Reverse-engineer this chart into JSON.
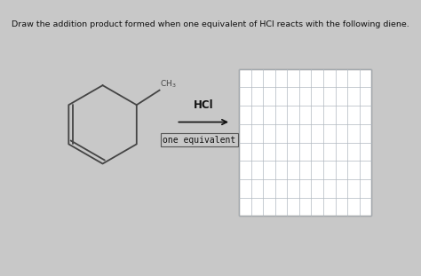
{
  "background_color": "#c8c8c8",
  "panel_color": "#e8e8e6",
  "title_text": "Draw the addition product formed when one equivalent of HCl reacts with the following diene.",
  "title_fontsize": 6.8,
  "title_color": "#111111",
  "reagent_text": "HCl",
  "condition_text": "one equivalent",
  "grid_rows": 8,
  "grid_cols": 11,
  "grid_color": "#b0b8c0",
  "grid_lw": 0.5,
  "grid_box_color": "#888888",
  "arrow_color": "#111111",
  "mol_line_color": "#444444",
  "mol_line_lw": 1.3,
  "ch3_fontsize": 6.5,
  "hcl_fontsize": 8.5,
  "cond_fontsize": 7.0
}
